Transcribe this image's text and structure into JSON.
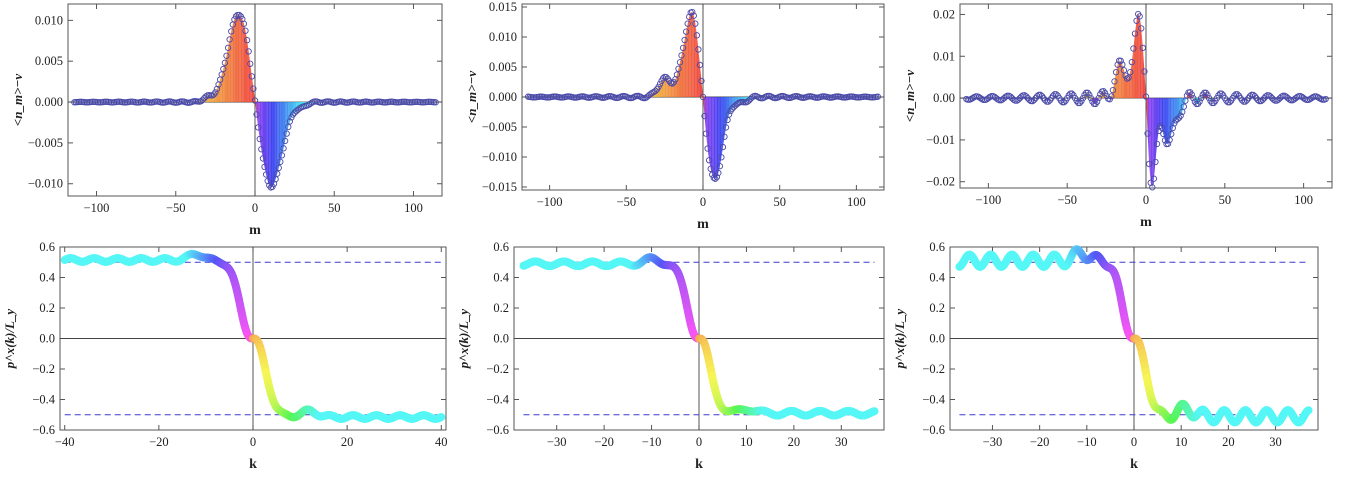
{
  "chart_data": [
    {
      "type": "scatter",
      "subtype": "filled-stem-markers",
      "xlabel": "m",
      "ylabel": "<n_m>−ν",
      "xlim": [
        -118,
        118
      ],
      "ylim": [
        -0.0115,
        0.012
      ],
      "xticks": [
        -100,
        -50,
        0,
        50,
        100
      ],
      "xtick_labels": [
        "−100",
        "−50",
        "0",
        "50",
        "100"
      ],
      "yticks": [
        -0.01,
        -0.005,
        0,
        0.005,
        0.01
      ],
      "ytick_labels": [
        "−0.010",
        "−0.005",
        "0.000",
        "0.005",
        "0.010"
      ],
      "point_range": [
        -114,
        114
      ],
      "features": [
        {
          "x": -10,
          "y": 0.011,
          "width": 10
        },
        {
          "x": 10,
          "y": -0.0105,
          "width": 10
        },
        {
          "x": -30,
          "y": 0.0005,
          "width": 4
        },
        {
          "x": 30,
          "y": -0.0005,
          "width": 4
        }
      ],
      "ripple": {
        "amplitude": 0.00018,
        "period": 8
      },
      "grid": false
    },
    {
      "type": "scatter",
      "subtype": "filled-stem-markers",
      "xlabel": "m",
      "ylabel": "<n_m>−ν",
      "xlim": [
        -118,
        118
      ],
      "ylim": [
        -0.0155,
        0.0155
      ],
      "xticks": [
        -100,
        -50,
        0,
        50,
        100
      ],
      "xtick_labels": [
        "−100",
        "−50",
        "0",
        "50",
        "100"
      ],
      "yticks": [
        -0.015,
        -0.01,
        -0.005,
        0,
        0.005,
        0.01,
        0.015
      ],
      "ytick_labels": [
        "−0.015",
        "−0.010",
        "−0.005",
        "0.000",
        "0.005",
        "0.010",
        "0.015"
      ],
      "point_range": [
        -114,
        114
      ],
      "features": [
        {
          "x": -7,
          "y": 0.0145,
          "width": 8
        },
        {
          "x": 7,
          "y": -0.0145,
          "width": 8
        },
        {
          "x": -25,
          "y": 0.003,
          "width": 6
        },
        {
          "x": 25,
          "y": -0.001,
          "width": 5
        }
      ],
      "ripple": {
        "amplitude": 0.0004,
        "period": 9
      },
      "grid": false
    },
    {
      "type": "scatter",
      "subtype": "filled-stem-markers",
      "xlabel": "m",
      "ylabel": "<n_m>−ν",
      "xlim": [
        -118,
        118
      ],
      "ylim": [
        -0.0215,
        0.0225
      ],
      "xticks": [
        -100,
        -50,
        0,
        50,
        100
      ],
      "xtick_labels": [
        "−100",
        "−50",
        "0",
        "50",
        "100"
      ],
      "yticks": [
        -0.02,
        -0.01,
        0,
        0.01,
        0.02
      ],
      "ytick_labels": [
        "−0.02",
        "−0.01",
        "0.00",
        "0.01",
        "0.02"
      ],
      "point_range": [
        -114,
        114
      ],
      "features": [
        {
          "x": -4,
          "y": 0.021,
          "width": 4
        },
        {
          "x": 4,
          "y": -0.02,
          "width": 4
        },
        {
          "x": -15,
          "y": 0.008,
          "width": 6
        },
        {
          "x": 15,
          "y": -0.01,
          "width": 6
        }
      ],
      "ripple": {
        "amplitude": 0.0025,
        "period": 10
      },
      "grid": false
    },
    {
      "type": "line",
      "xlabel": "k",
      "ylabel": "p^x(k)/L_y",
      "xlim": [
        -41,
        41
      ],
      "ylim": [
        -0.6,
        0.6
      ],
      "xticks": [
        -40,
        -20,
        0,
        20,
        40
      ],
      "xtick_labels": [
        "−40",
        "−20",
        "0",
        "20",
        "40"
      ],
      "yticks": [
        -0.6,
        -0.4,
        -0.2,
        0,
        0.2,
        0.4,
        0.6
      ],
      "ytick_labels": [
        "−0.6",
        "−0.4",
        "−0.2",
        "0.0",
        "0.2",
        "0.4",
        "0.6"
      ],
      "dashed_reference_lines": [
        0.5,
        -0.5
      ],
      "x_range": [
        -40,
        40
      ],
      "plateau": 0.515,
      "transition_width": 3.2,
      "wiggle": {
        "amplitude": 0.012,
        "period": 5,
        "bump_x": 12,
        "bump_y": 0.04
      },
      "grid": false
    },
    {
      "type": "line",
      "xlabel": "k",
      "ylabel": "p^x(k)/L_y",
      "xlim": [
        -39,
        39
      ],
      "ylim": [
        -0.6,
        0.6
      ],
      "xticks": [
        -30,
        -20,
        -10,
        0,
        10,
        20,
        30
      ],
      "xtick_labels": [
        "−30",
        "−20",
        "−10",
        "0",
        "10",
        "20",
        "30"
      ],
      "yticks": [
        -0.6,
        -0.4,
        -0.2,
        0,
        0.2,
        0.4,
        0.6
      ],
      "ytick_labels": [
        "−0.6",
        "−0.4",
        "−0.2",
        "0.0",
        "0.2",
        "0.4",
        "0.6"
      ],
      "dashed_reference_lines": [
        0.5,
        -0.5
      ],
      "x_range": [
        -37,
        37
      ],
      "plateau": 0.49,
      "transition_width": 2.4,
      "wiggle": {
        "amplitude": 0.015,
        "period": 6,
        "bump_x": 10,
        "bump_y": 0.03
      },
      "grid": false
    },
    {
      "type": "line",
      "xlabel": "k",
      "ylabel": "p^x(k)/L_y",
      "xlim": [
        -39,
        39
      ],
      "ylim": [
        -0.6,
        0.6
      ],
      "xticks": [
        -30,
        -20,
        -10,
        0,
        10,
        20,
        30
      ],
      "xtick_labels": [
        "−30",
        "−20",
        "−10",
        "0",
        "10",
        "20",
        "30"
      ],
      "yticks": [
        -0.6,
        -0.4,
        -0.2,
        0,
        0.2,
        0.4,
        0.6
      ],
      "ytick_labels": [
        "−0.6",
        "−0.4",
        "−0.2",
        "0.0",
        "0.2",
        "0.4",
        "0.6"
      ],
      "dashed_reference_lines": [
        0.5,
        -0.5
      ],
      "x_range": [
        -37,
        37
      ],
      "plateau": 0.51,
      "transition_width": 2.4,
      "wiggle": {
        "amplitude": 0.04,
        "period": 4.5,
        "bump_x": 11,
        "bump_y": 0.05
      },
      "grid": false
    }
  ]
}
